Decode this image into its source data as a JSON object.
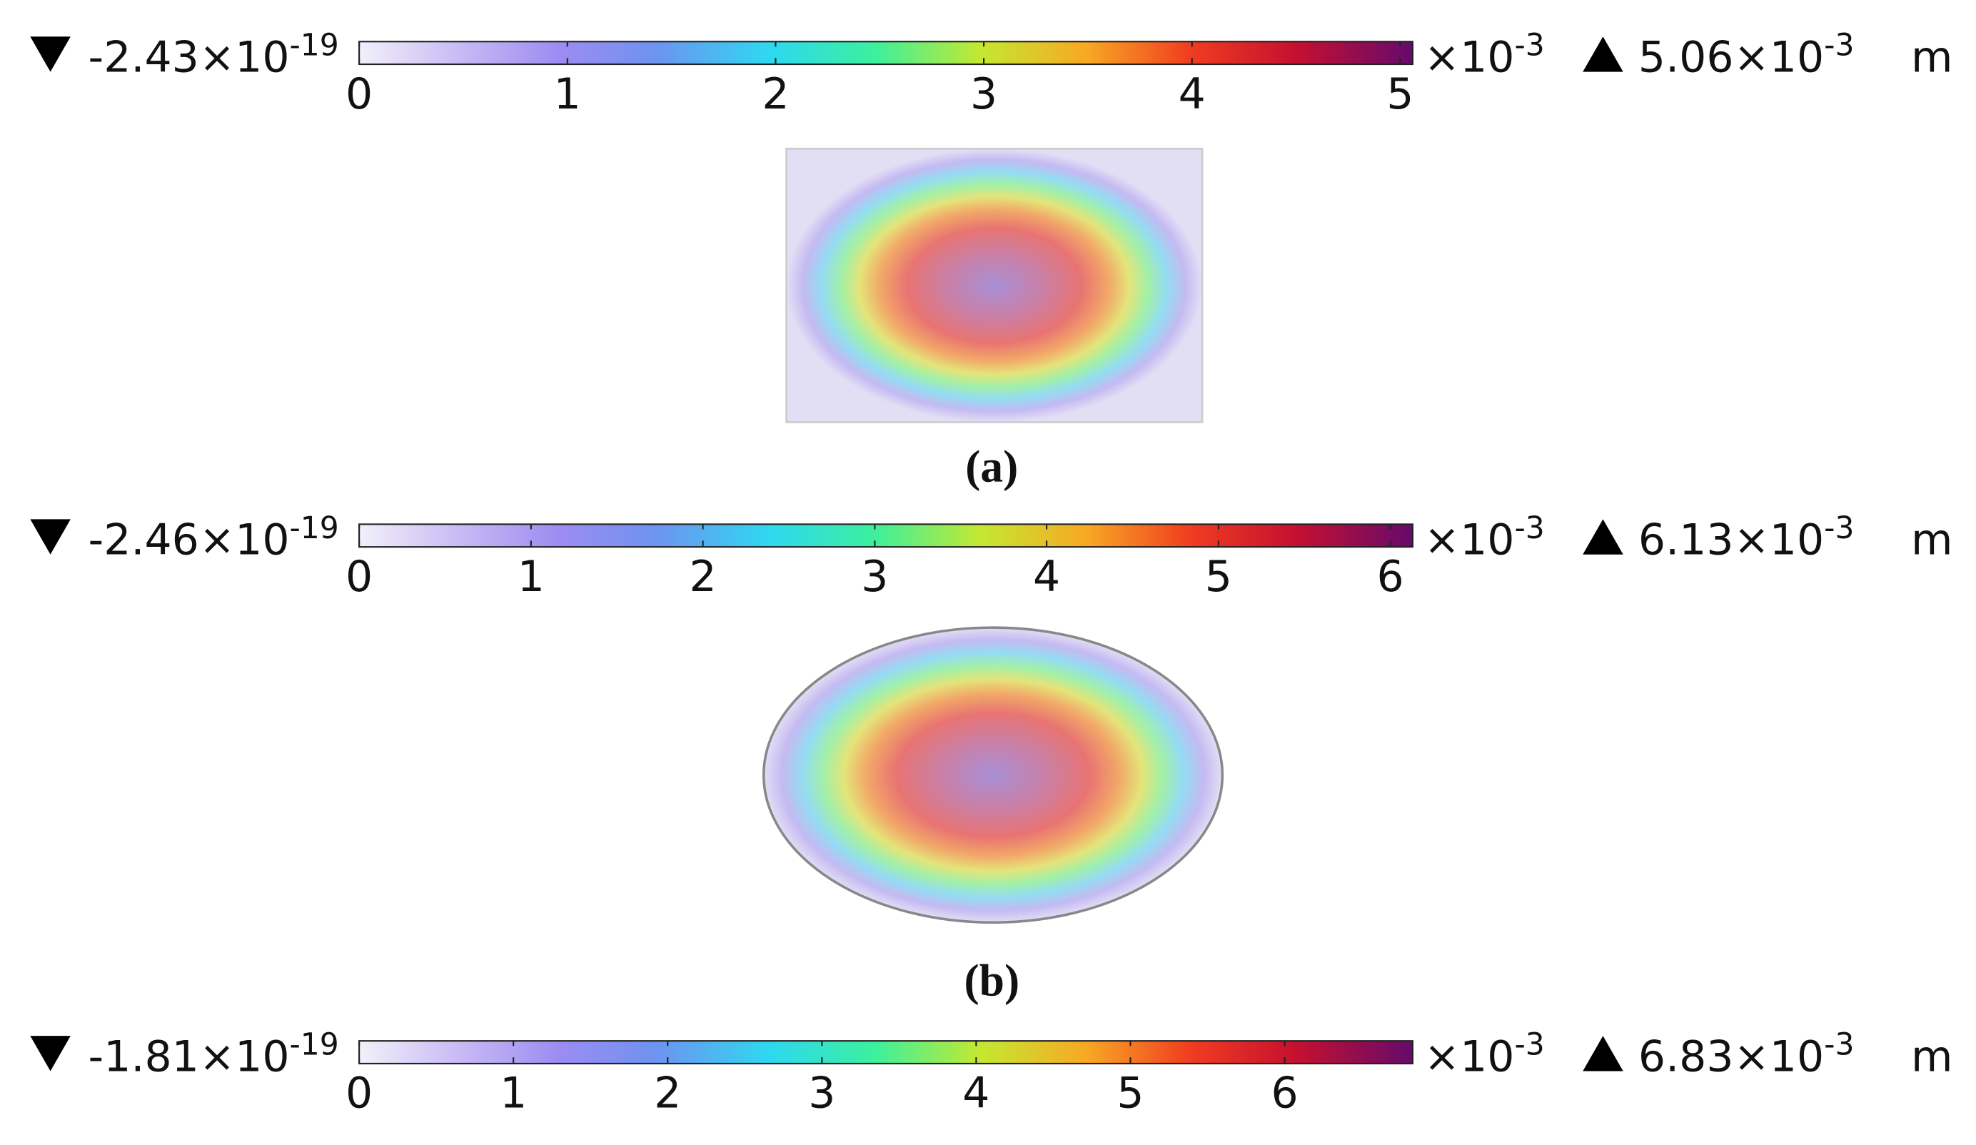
{
  "panels": [
    {
      "min_label": {
        "base": "-2.43×10",
        "exp": "-19"
      },
      "multiplier": {
        "base": "×10",
        "exp": "-3"
      },
      "max_label": {
        "base": "5.06×10",
        "exp": "-3"
      },
      "unit": "m",
      "clim": [
        0,
        5.06
      ],
      "ticks": [
        0,
        1,
        2,
        3,
        4,
        5
      ],
      "shape": "rectangle",
      "caption": "(a)"
    },
    {
      "min_label": {
        "base": "-2.46×10",
        "exp": "-19"
      },
      "multiplier": {
        "base": "×10",
        "exp": "-3"
      },
      "max_label": {
        "base": "6.13×10",
        "exp": "-3"
      },
      "unit": "m",
      "clim": [
        0,
        6.13
      ],
      "ticks": [
        0,
        1,
        2,
        3,
        4,
        5,
        6
      ],
      "shape": "ellipse",
      "caption": "(b)"
    },
    {
      "min_label": {
        "base": "-1.81×10",
        "exp": "-19"
      },
      "multiplier": {
        "base": "×10",
        "exp": "-3"
      },
      "max_label": {
        "base": "6.83×10",
        "exp": "-3"
      },
      "unit": "m",
      "clim": [
        0,
        6.83
      ],
      "ticks": [
        0,
        1,
        2,
        3,
        4,
        5,
        6
      ]
    }
  ]
}
